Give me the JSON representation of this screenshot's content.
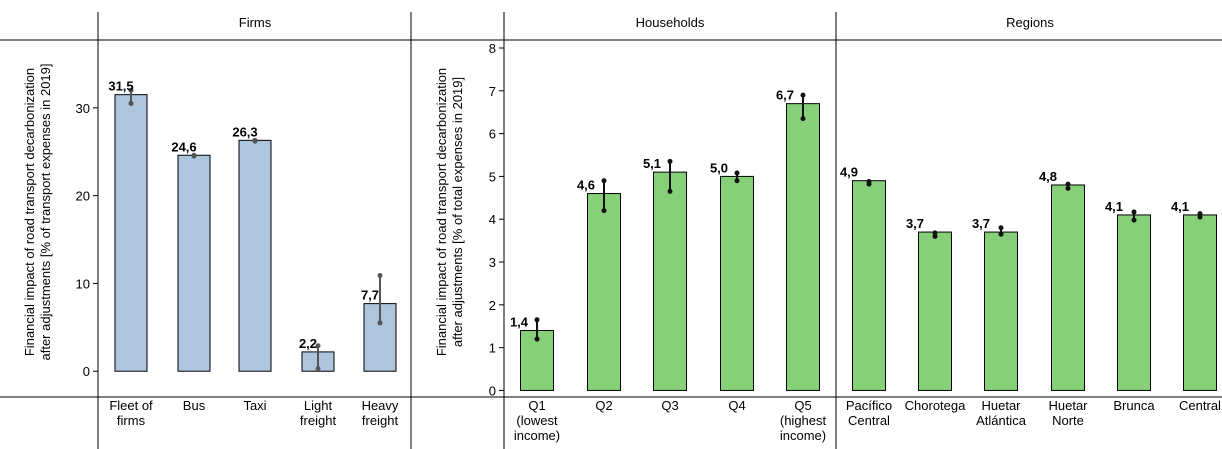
{
  "chart_data": [
    {
      "panel": "Firms",
      "type": "bar",
      "ylabel": [
        "Financial impact of road transport decarbonization",
        "after adjustments [% of transport expenses in 2019]"
      ],
      "categories": [
        [
          "Fleet of",
          "firms"
        ],
        [
          "Bus"
        ],
        [
          "Taxi"
        ],
        [
          "Light",
          "freight"
        ],
        [
          "Heavy",
          "freight"
        ]
      ],
      "values": [
        31.5,
        24.6,
        26.3,
        2.2,
        7.7
      ],
      "value_labels": [
        "31,5",
        "24,6",
        "26,3",
        "2,2",
        "7,7"
      ],
      "error_low": [
        30.5,
        24.5,
        26.2,
        0.3,
        5.5
      ],
      "error_high": [
        32.0,
        24.6,
        26.3,
        2.9,
        10.9
      ],
      "yticks": [
        0,
        10,
        20,
        30
      ],
      "ylim": [
        -1,
        37.5
      ],
      "bar_color": "#adc6de",
      "error_color": "#555555"
    },
    {
      "panel": "Households",
      "type": "bar",
      "ylabel": [
        "Financial impact of road transport decarbonization",
        "after adjustments [% of total expenses in 2019]"
      ],
      "categories": [
        [
          "Q1",
          "(lowest",
          "income)"
        ],
        [
          "Q2"
        ],
        [
          "Q3"
        ],
        [
          "Q4"
        ],
        [
          "Q5",
          "(highest",
          "income)"
        ]
      ],
      "values": [
        1.4,
        4.6,
        5.1,
        5.0,
        6.7
      ],
      "value_labels": [
        "1,4",
        "4,6",
        "5,1",
        "5,0",
        "6,7"
      ],
      "error_low": [
        1.2,
        4.2,
        4.65,
        4.9,
        6.35
      ],
      "error_high": [
        1.65,
        4.9,
        5.35,
        5.08,
        6.9
      ],
      "yticks": [
        0,
        1,
        2,
        3,
        4,
        5,
        6,
        7,
        8
      ],
      "ylim": [
        -0.2,
        8.0
      ],
      "bar_color": "#87d07a",
      "error_color": "#111111"
    },
    {
      "panel": "Regions",
      "type": "bar",
      "categories": [
        [
          "Pacífico",
          "Central"
        ],
        [
          "Chorotega"
        ],
        [
          "Huetar",
          "Atlántica"
        ],
        [
          "Huetar",
          "Norte"
        ],
        [
          "Brunca"
        ],
        [
          "Central"
        ]
      ],
      "values": [
        4.9,
        3.7,
        3.7,
        4.8,
        4.1,
        4.1
      ],
      "value_labels": [
        "4,9",
        "3,7",
        "3,7",
        "4,8",
        "4,1",
        "4,1"
      ],
      "error_low": [
        4.82,
        3.6,
        3.65,
        4.72,
        3.98,
        4.05
      ],
      "error_high": [
        4.88,
        3.68,
        3.8,
        4.82,
        4.17,
        4.13
      ],
      "ylim": [
        -0.2,
        8.0
      ],
      "bar_color": "#87d07a",
      "error_color": "#111111"
    }
  ]
}
